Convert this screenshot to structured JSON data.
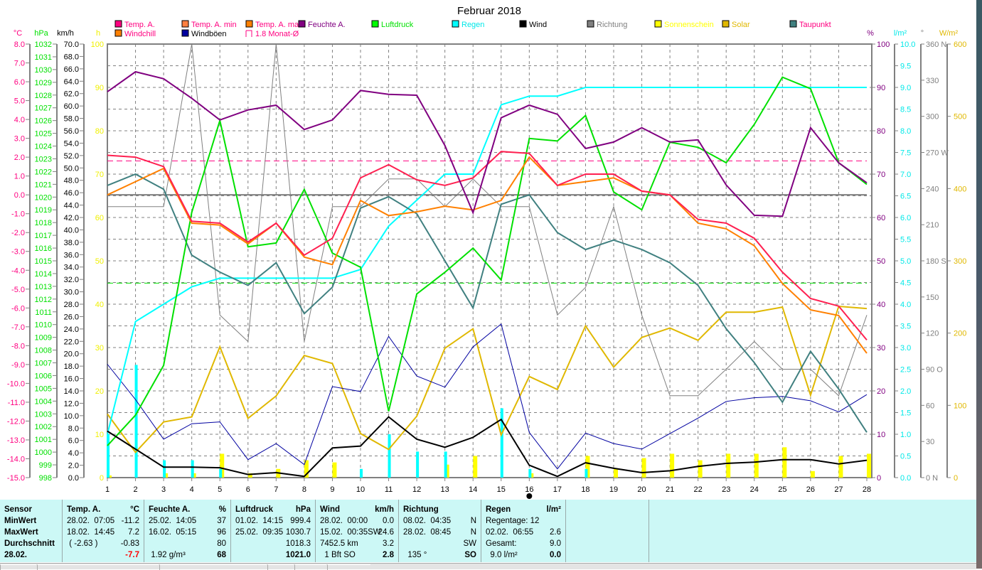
{
  "title": "Februar 2018",
  "legend": [
    {
      "label": "Temp. A.",
      "box": "#ff0080",
      "text": "#ff0080"
    },
    {
      "label": "Temp. A. min",
      "box": "#ff8040",
      "text": "#ff0080"
    },
    {
      "label": "Temp. A. max",
      "box": "#ff8000",
      "text": "#ff0080"
    },
    {
      "label": "Feuchte A.",
      "box": "#800080",
      "text": "#800080"
    },
    {
      "label": "Luftdruck",
      "box": "#00ff00",
      "text": "#00e000"
    },
    {
      "label": "Regen",
      "box": "#00ffff",
      "text": "#00e8e8"
    },
    {
      "label": "Wind",
      "box": "#000000",
      "text": "#000000"
    },
    {
      "label": "Richtung",
      "box": "#808080",
      "text": "#808080"
    },
    {
      "label": "Sonnenschein",
      "box": "#ffff00",
      "text": "#ffff00"
    },
    {
      "label": "Solar",
      "box": "#e0b800",
      "text": "#e0b800"
    },
    {
      "label": "Taupunkt",
      "box": "#408080",
      "text": "#ff0080"
    },
    {
      "label": "Windchill",
      "box": "#ff8000",
      "text": "#ff0080"
    },
    {
      "label": "Windböen",
      "box": "#0000a0",
      "text": "#000000"
    },
    {
      "label": "1.8 Monat-Ø",
      "box": "none",
      "text": "#ff0080"
    }
  ],
  "axes": [
    {
      "id": "temp",
      "unit": "°C",
      "color": "#ff0080",
      "min": -15,
      "max": 8,
      "step": 1,
      "labels": [
        "8.0",
        "7.0",
        "6.0",
        "5.0",
        "4.0",
        "3.0",
        "2.0",
        "1.0",
        "0.0",
        "-1.0",
        "-2.0",
        "-3.0",
        "-4.0",
        "-5.0",
        "-6.0",
        "-7.0",
        "-8.0",
        "-9.0",
        "-10.0",
        "-11.0",
        "-12.0",
        "-13.0",
        "-14.0",
        "-15.0"
      ]
    },
    {
      "id": "pressure",
      "unit": "hPa",
      "color": "#00e000",
      "min": 998,
      "max": 1032,
      "step": 1,
      "labels": [
        "1032",
        "1031",
        "1030",
        "1029",
        "1028",
        "1027",
        "1026",
        "1025",
        "1024",
        "1023",
        "1022",
        "1021",
        "1020",
        "1019",
        "1018",
        "1017",
        "1016",
        "1015",
        "1014",
        "1013",
        "1012",
        "1011",
        "1010",
        "1009",
        "1008",
        "1007",
        "1006",
        "1005",
        "1004",
        "1003",
        "1002",
        "1001",
        "1000",
        "999",
        "998"
      ]
    },
    {
      "id": "wind",
      "unit": "km/h",
      "color": "#000000",
      "min": 0,
      "max": 70,
      "step": 2,
      "labels": [
        "70.0",
        "68.0",
        "66.0",
        "64.0",
        "62.0",
        "60.0",
        "58.0",
        "56.0",
        "54.0",
        "52.0",
        "50.0",
        "48.0",
        "46.0",
        "44.0",
        "42.0",
        "40.0",
        "38.0",
        "36.0",
        "34.0",
        "32.0",
        "30.0",
        "28.0",
        "26.0",
        "24.0",
        "22.0",
        "20.0",
        "18.0",
        "16.0",
        "14.0",
        "12.0",
        "10.0",
        "8.0",
        "6.0",
        "4.0",
        "2.0",
        "0.0"
      ]
    },
    {
      "id": "h",
      "unit": "h",
      "color": "#f0f000",
      "min": 0,
      "max": 100,
      "step": 10,
      "labels": [
        "100",
        "90",
        "80",
        "70",
        "60",
        "50",
        "40",
        "30",
        "20",
        "10",
        "0"
      ]
    },
    {
      "id": "pct",
      "unit": "%",
      "color": "#800080",
      "min": 0,
      "max": 100,
      "step": 10,
      "labels": [
        "100",
        "90",
        "80",
        "70",
        "60",
        "50",
        "40",
        "30",
        "20",
        "10",
        "0"
      ]
    },
    {
      "id": "rain",
      "unit": "l/m²",
      "color": "#00e8e8",
      "min": 0,
      "max": 10,
      "step": 0.5,
      "labels": [
        "10.0",
        "9.5",
        "9.0",
        "8.5",
        "8.0",
        "7.5",
        "7.0",
        "6.5",
        "6.0",
        "5.5",
        "5.0",
        "4.5",
        "4.0",
        "3.5",
        "3.0",
        "2.5",
        "2.0",
        "1.5",
        "1.0",
        "0.5",
        "0.0"
      ]
    },
    {
      "id": "deg",
      "unit": "°",
      "color": "#808080",
      "min": 0,
      "max": 360,
      "step": 30,
      "labels": [
        "360 N",
        "330",
        "300",
        "270 W",
        "240",
        "210",
        "180 S",
        "150",
        "120",
        "90  O",
        "60",
        "30",
        "0    N"
      ]
    },
    {
      "id": "solar",
      "unit": "W/m²",
      "color": "#e0b800",
      "min": 0,
      "max": 600,
      "step": 100,
      "labels": [
        "600",
        "500",
        "400",
        "300",
        "200",
        "100",
        "0"
      ]
    }
  ],
  "chart_data": {
    "type": "line",
    "title": "Februar 2018",
    "x": [
      1,
      2,
      3,
      4,
      5,
      6,
      7,
      8,
      9,
      10,
      11,
      12,
      13,
      14,
      15,
      16,
      17,
      18,
      19,
      20,
      21,
      22,
      23,
      24,
      25,
      26,
      27,
      28
    ],
    "x_labels": [
      "1",
      "2",
      "3",
      "4",
      "5",
      "6",
      "7",
      "8",
      "9",
      "10",
      "11",
      "12",
      "13",
      "14",
      "15",
      "16",
      "17",
      "18",
      "19",
      "20",
      "21",
      "22",
      "23",
      "24",
      "25",
      "26",
      "27",
      "28"
    ],
    "grid": true,
    "reference_lines": [
      {
        "name": "temp-zero",
        "axis": "temp",
        "value": 0,
        "color": "#808080",
        "style": "solid"
      },
      {
        "name": "temp-month-avg",
        "axis": "temp",
        "value": 1.8,
        "color": "#ff0080",
        "style": "dashed"
      },
      {
        "name": "pressure-standard",
        "axis": "pressure",
        "value": 1013.25,
        "color": "#00e000",
        "style": "dashed"
      }
    ],
    "bars": [
      {
        "name": "Sonnenschein",
        "axis": "h",
        "color": "#ffff00",
        "values": [
          0.5,
          0,
          1,
          1,
          5.5,
          1,
          2,
          4,
          3.5,
          0,
          0,
          0,
          3,
          5,
          0,
          1,
          0,
          5,
          2,
          4.5,
          5.5,
          4,
          5.5,
          5.5,
          7,
          1.5,
          5,
          5.5
        ]
      },
      {
        "name": "Regen täglich",
        "axis": "rain",
        "color": "#00ffff",
        "values": [
          1.0,
          2.6,
          0.4,
          0.4,
          0.2,
          0,
          0,
          0,
          0,
          0.2,
          1.0,
          0.6,
          0.6,
          0,
          1.6,
          0.2,
          0,
          0.2,
          0,
          0,
          0,
          0,
          0,
          0,
          0,
          0,
          0,
          0
        ]
      }
    ],
    "series": [
      {
        "name": "Solar",
        "axis": "solar",
        "color": "#e0b800",
        "width": 2,
        "values": [
          88,
          35,
          77,
          84,
          181,
          82,
          113,
          169,
          158,
          61,
          39,
          85,
          179,
          206,
          59,
          140,
          122,
          210,
          153,
          194,
          207,
          190,
          229,
          229,
          236,
          114,
          237,
          234
        ]
      },
      {
        "name": "Richtung",
        "axis": "deg",
        "color": "#808080",
        "width": 1,
        "values": [
          225,
          225,
          225,
          360,
          135,
          113,
          360,
          113,
          225,
          225,
          248,
          248,
          225,
          248,
          225,
          225,
          135,
          158,
          225,
          135,
          68,
          68,
          90,
          113,
          90,
          90,
          68,
          135
        ]
      },
      {
        "name": "Windböen",
        "axis": "wind",
        "color": "#0000a0",
        "width": 1,
        "values": [
          18.3,
          12.6,
          6.2,
          8.7,
          9.0,
          2.9,
          5.5,
          2.1,
          14.7,
          13.9,
          22.8,
          16.4,
          14.6,
          21.1,
          24.8,
          7.3,
          1.4,
          7.2,
          5.5,
          4.6,
          7.1,
          9.6,
          12.3,
          12.9,
          13.1,
          12.4,
          10.6,
          13.4
        ]
      },
      {
        "name": "Regen",
        "axis": "rain",
        "color": "#00ffff",
        "width": 2,
        "values": [
          1.0,
          3.6,
          4.0,
          4.4,
          4.6,
          4.6,
          4.6,
          4.6,
          4.6,
          4.8,
          5.8,
          6.4,
          7.0,
          7.0,
          8.6,
          8.8,
          8.8,
          9.0,
          9.0,
          9.0,
          9.0,
          9.0,
          9.0,
          9.0,
          9.0,
          9.0,
          9.0,
          9.0
        ]
      },
      {
        "name": "Taupunkt",
        "axis": "temp",
        "color": "#408080",
        "width": 2,
        "values": [
          0.5,
          1.1,
          0.3,
          -3.2,
          -4.1,
          -4.8,
          -3.6,
          -6.3,
          -4.9,
          -0.7,
          -0.1,
          -1.0,
          -3.5,
          -6.0,
          -0.5,
          0.0,
          -2.0,
          -2.9,
          -2.4,
          -2.9,
          -3.6,
          -4.8,
          -7.1,
          -8.9,
          -11.0,
          -8.3,
          -10.3,
          -12.6
        ]
      },
      {
        "name": "Luftdruck",
        "axis": "pressure",
        "color": "#00e000",
        "width": 2,
        "values": [
          1000.5,
          1002.9,
          1006.8,
          1018.8,
          1026.0,
          1016.1,
          1016.4,
          1020.6,
          1015.6,
          1014.5,
          1003.2,
          1012.4,
          1014.1,
          1016.0,
          1013.5,
          1024.6,
          1024.4,
          1026.4,
          1020.4,
          1019.0,
          1024.3,
          1023.9,
          1022.7,
          1025.7,
          1029.4,
          1028.5,
          1022.7,
          1021.0
        ]
      },
      {
        "name": "Windchill",
        "axis": "temp",
        "color": "#ff8000",
        "width": 2,
        "values": [
          0.0,
          0.7,
          1.4,
          -1.5,
          -1.6,
          -2.6,
          -1.5,
          -3.3,
          -3.7,
          -0.3,
          -1.1,
          -0.9,
          -0.6,
          -0.8,
          -0.3,
          2.0,
          0.5,
          0.7,
          0.9,
          0.2,
          0.0,
          -1.5,
          -1.8,
          -2.7,
          -4.7,
          -6.1,
          -6.4,
          -8.4
        ]
      },
      {
        "name": "Temp. A.",
        "axis": "temp",
        "color": "#ff2050",
        "width": 2,
        "values": [
          2.1,
          2.0,
          1.5,
          -1.4,
          -1.5,
          -2.5,
          -1.5,
          -3.2,
          -2.3,
          0.9,
          1.6,
          0.8,
          0.5,
          0.9,
          2.3,
          2.2,
          0.5,
          1.1,
          1.1,
          0.2,
          0.0,
          -1.3,
          -1.5,
          -2.3,
          -4.1,
          -5.5,
          -5.9,
          -7.7
        ]
      },
      {
        "name": "Feuchte A.",
        "axis": "pct",
        "color": "#800080",
        "width": 2,
        "values": [
          89,
          93.6,
          92,
          87.5,
          82.5,
          84.8,
          85.9,
          80.3,
          82.5,
          89.3,
          88.4,
          88.2,
          76.6,
          61.1,
          83,
          85.9,
          83.8,
          75.9,
          77.4,
          80.7,
          77.4,
          77.9,
          67.5,
          60.5,
          60.3,
          80.7,
          72.6,
          68
        ]
      },
      {
        "name": "Wind",
        "axis": "wind",
        "color": "#000000",
        "width": 2,
        "values": [
          7.5,
          4.6,
          1.7,
          1.7,
          1.6,
          0.5,
          0.8,
          0.2,
          4.8,
          5.1,
          9.8,
          6.2,
          4.9,
          6.5,
          9.4,
          2.0,
          0.2,
          2.4,
          1.5,
          0.8,
          1.1,
          1.8,
          2.3,
          2.5,
          2.9,
          2.9,
          2.2,
          2.8
        ]
      }
    ]
  },
  "table": [
    {
      "header": [
        "Sensor",
        ""
      ],
      "rows": [
        [
          "MinWert",
          ""
        ],
        [
          "MaxWert",
          ""
        ],
        [
          "Durchschnitt",
          ""
        ],
        [
          "28.02.",
          ""
        ]
      ]
    },
    {
      "header": [
        "Temp. A.",
        "°C"
      ],
      "rows": [
        [
          "28.02.  07:05",
          "-11.2"
        ],
        [
          "18.02.  14:45",
          "7.2"
        ],
        [
          " ( -2.63 )",
          "-0.83"
        ],
        [
          "",
          "-7.7"
        ]
      ]
    },
    {
      "header": [
        "Feuchte A.",
        "%"
      ],
      "rows": [
        [
          "25.02.  14:05",
          "37"
        ],
        [
          "16.02.  05:15",
          "96"
        ],
        [
          "",
          "80"
        ],
        [
          " 1.92 g/m³",
          "68"
        ]
      ]
    },
    {
      "header": [
        "Luftdruck",
        "hPa"
      ],
      "rows": [
        [
          "01.02.  14:15",
          "999.4"
        ],
        [
          "25.02.  09:35",
          "1030.7"
        ],
        [
          "",
          "1018.3"
        ],
        [
          "",
          "1021.0"
        ]
      ]
    },
    {
      "header": [
        "Wind",
        "km/h"
      ],
      "rows": [
        [
          "28.02.  00:00",
          "0.0"
        ],
        [
          "15.02.  00:35SW",
          "24.6"
        ],
        [
          "7452.5 km",
          "3.2"
        ],
        [
          "  1 Bft SO",
          "2.8"
        ]
      ]
    },
    {
      "header": [
        "Richtung",
        ""
      ],
      "rows": [
        [
          "08.02.  04:35",
          "N"
        ],
        [
          "28.02.  08:45",
          "N"
        ],
        [
          "",
          "SW"
        ],
        [
          "  135 °",
          "SO"
        ]
      ]
    },
    {
      "header": [
        "Regen",
        "l/m²"
      ],
      "rows": [
        [
          "Regentage: 12",
          ""
        ],
        [
          "02.02.  06:55",
          "2.6"
        ],
        [
          "Gesamt:",
          "9.0"
        ],
        [
          "  9.0 l/m²",
          "0.0"
        ]
      ]
    }
  ]
}
